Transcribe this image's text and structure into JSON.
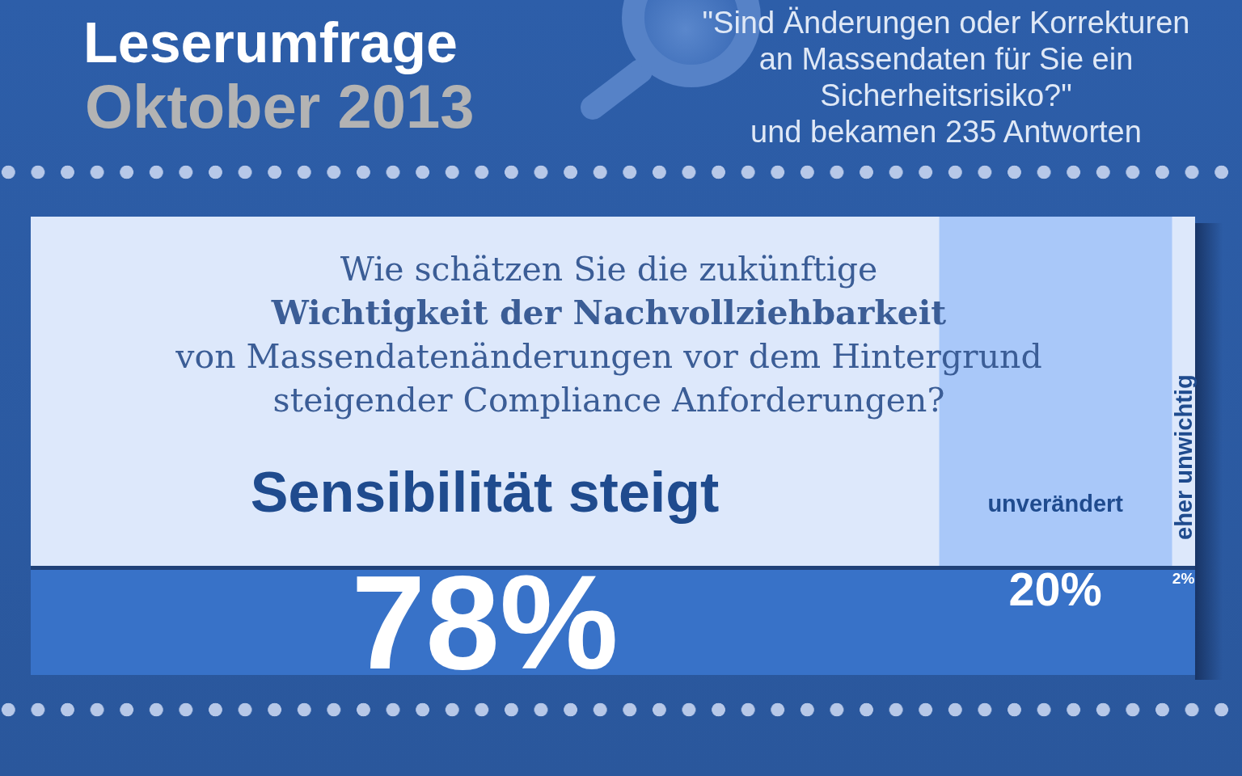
{
  "chart_data": {
    "type": "bar",
    "orientation": "horizontal",
    "stacked": true,
    "title": "Leserumfrage",
    "subtitle": "Oktober 2013",
    "annotations": [
      "\"Sind Änderungen oder Korrekturen an Massendaten für Sie ein Sicherheitsrisiko?\"",
      "und bekamen 235 Antworten",
      "Wie schätzen Sie die zukünftige",
      "Wichtigkeit der Nachvollziehbarkeit",
      "von Massendatenänderungen vor dem Hintergrund steigender Compliance Anforderungen?"
    ],
    "categories": [
      null
    ],
    "series": [
      {
        "name": "Sensibilität steigt",
        "color": "#dde8fb",
        "values": [
          78
        ],
        "value_labels": [
          "78%"
        ]
      },
      {
        "name": "unverändert",
        "color": "#a9c8f9",
        "values": [
          20
        ],
        "value_labels": [
          "20%"
        ]
      },
      {
        "name": "eher unwichtig",
        "color": "#dde8fb",
        "values": [
          2
        ],
        "value_labels": [
          "2%"
        ]
      }
    ],
    "xlim": [
      0,
      100
    ],
    "tick_labels": false
  }
}
